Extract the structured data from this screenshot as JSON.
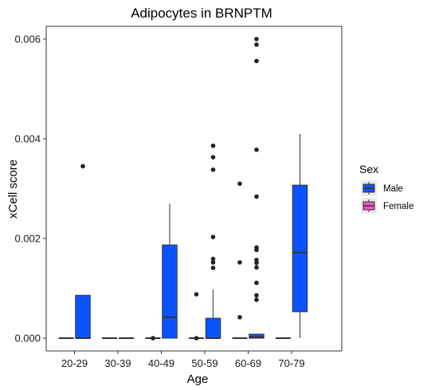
{
  "chart_data": {
    "type": "boxplot",
    "title": "Adipocytes in BRNPTM",
    "xlabel": "Age",
    "ylabel": "xCell score",
    "categories": [
      "20-29",
      "30-39",
      "40-49",
      "50-59",
      "60-69",
      "70-79"
    ],
    "yticks": [
      0.0,
      0.002,
      0.004,
      0.006
    ],
    "ytick_labels": [
      "0.000",
      "0.002",
      "0.004",
      "0.006"
    ],
    "ylim": [
      -0.0003,
      0.0062
    ],
    "grid": false,
    "legend": {
      "title": "Sex",
      "placement": "right",
      "entries": [
        {
          "label": "Male",
          "color": "#0a54ff"
        },
        {
          "label": "Female",
          "color": "#ff4fc5"
        }
      ]
    },
    "series": [
      {
        "name": "Female",
        "color": "#ff4fc5",
        "boxes": [
          {
            "category": "20-29",
            "q1": 0,
            "median": 0,
            "q3": 0,
            "whisker_low": 0,
            "whisker_high": 0,
            "outliers": []
          },
          {
            "category": "30-39",
            "q1": 0,
            "median": 0,
            "q3": 0,
            "whisker_low": 0,
            "whisker_high": 0,
            "outliers": []
          },
          {
            "category": "40-49",
            "q1": 0,
            "median": 0,
            "q3": 0,
            "whisker_low": 0,
            "whisker_high": 0,
            "outliers": [
              0
            ]
          },
          {
            "category": "50-59",
            "q1": 0,
            "median": 0,
            "q3": 0,
            "whisker_low": 0,
            "whisker_high": 0,
            "outliers": [
              0.00088,
              0
            ]
          },
          {
            "category": "60-69",
            "q1": 0,
            "median": 0,
            "q3": 0,
            "whisker_low": 0,
            "whisker_high": 0,
            "outliers": [
              0.0031,
              0.00152,
              0.00042
            ]
          },
          {
            "category": "70-79",
            "q1": 0,
            "median": 0,
            "q3": 0,
            "whisker_low": 0,
            "whisker_high": 0,
            "outliers": []
          }
        ]
      },
      {
        "name": "Male",
        "color": "#0a54ff",
        "boxes": [
          {
            "category": "20-29",
            "q1": 0,
            "median": 0,
            "q3": 0.00086,
            "whisker_low": 0,
            "whisker_high": 0.00086,
            "outliers": [
              0.00345
            ]
          },
          {
            "category": "30-39",
            "q1": 0,
            "median": 0,
            "q3": 0,
            "whisker_low": 0,
            "whisker_high": 0,
            "outliers": []
          },
          {
            "category": "40-49",
            "q1": 0,
            "median": 0.00042,
            "q3": 0.00187,
            "whisker_low": 0,
            "whisker_high": 0.0027,
            "outliers": []
          },
          {
            "category": "50-59",
            "q1": 0,
            "median": 0,
            "q3": 0.0004,
            "whisker_low": 0,
            "whisker_high": 0.00097,
            "outliers": [
              0.00386,
              0.00363,
              0.00338,
              0.00203,
              0.00159,
              0.00152,
              0.00141
            ]
          },
          {
            "category": "60-69",
            "q1": 0,
            "median": 2e-05,
            "q3": 8e-05,
            "whisker_low": 0,
            "whisker_high": 8e-05,
            "outliers": [
              0.006,
              0.00589,
              0.00556,
              0.00378,
              0.00284,
              0.00182,
              0.00177,
              0.00157,
              0.00151,
              0.00142,
              0.00111,
              0.00086,
              0.00077
            ]
          },
          {
            "category": "70-79",
            "q1": 0.00053,
            "median": 0.00172,
            "q3": 0.00307,
            "whisker_low": 0,
            "whisker_high": 0.0041,
            "outliers": []
          }
        ]
      }
    ]
  }
}
